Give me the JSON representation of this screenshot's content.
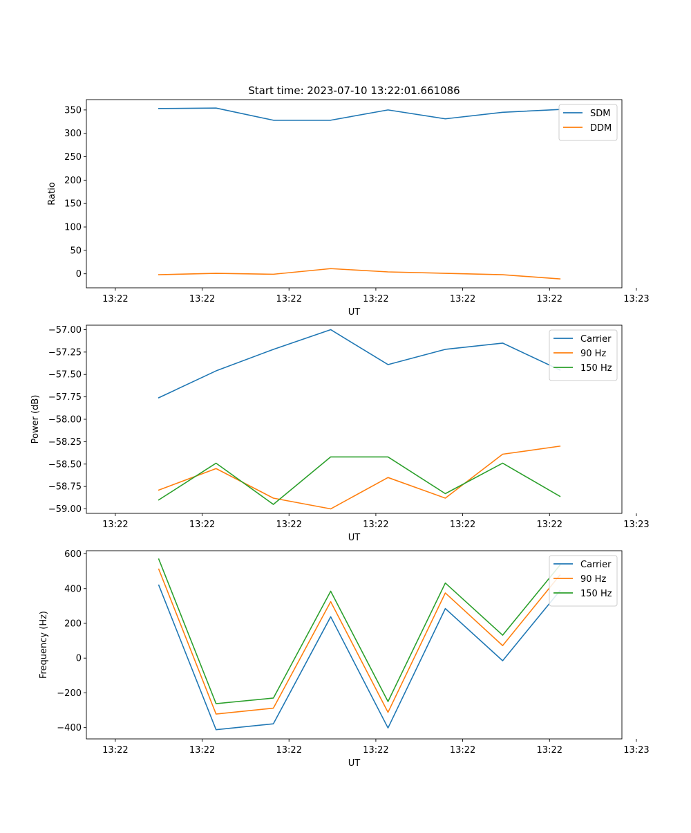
{
  "figure_title": "Start time: 2023-07-10 13:22:01.661086",
  "chart_data": [
    {
      "type": "line",
      "title": "Start time: 2023-07-10 13:22:01.661086",
      "xlabel": "UT",
      "ylabel": "Ratio",
      "xlim": [
        -0.5,
        8.75
      ],
      "ylim": [
        -30,
        372
      ],
      "xticks": [
        0,
        1.5,
        3,
        4.5,
        6,
        7.5,
        9
      ],
      "xtick_labels": [
        "13:22",
        "13:22",
        "13:22",
        "13:22",
        "13:22",
        "13:22",
        "13:23"
      ],
      "yticks": [
        0,
        50,
        100,
        150,
        200,
        250,
        300,
        350
      ],
      "ytick_labels": [
        "0",
        "50",
        "100",
        "150",
        "200",
        "250",
        "300",
        "350"
      ],
      "x": [
        0.75,
        1.74,
        2.73,
        3.72,
        4.71,
        5.7,
        6.69,
        7.68
      ],
      "legend_position": "top-right",
      "series": [
        {
          "name": "SDM",
          "color": "#1f77b4",
          "values": [
            353,
            354,
            328,
            328,
            350,
            331,
            345,
            351
          ]
        },
        {
          "name": "DDM",
          "color": "#ff7f0e",
          "values": [
            -2,
            1,
            -1,
            11,
            4,
            1,
            -2,
            -11
          ]
        }
      ]
    },
    {
      "type": "line",
      "title": "",
      "xlabel": "UT",
      "ylabel": "Power (dB)",
      "xlim": [
        -0.5,
        8.75
      ],
      "ylim": [
        -59.05,
        -56.95
      ],
      "xticks": [
        0,
        1.5,
        3,
        4.5,
        6,
        7.5,
        9
      ],
      "xtick_labels": [
        "13:22",
        "13:22",
        "13:22",
        "13:22",
        "13:22",
        "13:22",
        "13:23"
      ],
      "yticks": [
        -59.0,
        -58.75,
        -58.5,
        -58.25,
        -58.0,
        -57.75,
        -57.5,
        -57.25,
        -57.0
      ],
      "ytick_labels": [
        "−59.00",
        "−58.75",
        "−58.50",
        "−58.25",
        "−58.00",
        "−57.75",
        "−57.50",
        "−57.25",
        "−57.00"
      ],
      "x": [
        0.75,
        1.74,
        2.73,
        3.72,
        4.71,
        5.7,
        6.69,
        7.68
      ],
      "legend_position": "top-right",
      "series": [
        {
          "name": "Carrier",
          "color": "#1f77b4",
          "values": [
            -57.76,
            -57.46,
            -57.22,
            -57.0,
            -57.39,
            -57.22,
            -57.15,
            -57.45
          ]
        },
        {
          "name": "90 Hz",
          "color": "#ff7f0e",
          "values": [
            -58.79,
            -58.55,
            -58.88,
            -59.0,
            -58.65,
            -58.88,
            -58.39,
            -58.3
          ]
        },
        {
          "name": "150 Hz",
          "color": "#2ca02c",
          "values": [
            -58.9,
            -58.49,
            -58.95,
            -58.42,
            -58.42,
            -58.83,
            -58.49,
            -58.86
          ]
        }
      ]
    },
    {
      "type": "line",
      "title": "",
      "xlabel": "UT",
      "ylabel": "Frequency (Hz)",
      "xlim": [
        -0.5,
        8.75
      ],
      "ylim": [
        -465,
        618
      ],
      "xticks": [
        0,
        1.5,
        3,
        4.5,
        6,
        7.5,
        9
      ],
      "xtick_labels": [
        "13:22",
        "13:22",
        "13:22",
        "13:22",
        "13:22",
        "13:22",
        "13:23"
      ],
      "yticks": [
        -400,
        -200,
        0,
        200,
        400,
        600
      ],
      "ytick_labels": [
        "−400",
        "−200",
        "0",
        "200",
        "400",
        "600"
      ],
      "x": [
        0.75,
        1.74,
        2.73,
        3.72,
        4.71,
        5.7,
        6.69,
        7.68
      ],
      "legend_position": "top-right",
      "series": [
        {
          "name": "Carrier",
          "color": "#1f77b4",
          "values": [
            420,
            -412,
            -378,
            238,
            -402,
            285,
            -15,
            388
          ]
        },
        {
          "name": "90 Hz",
          "color": "#ff7f0e",
          "values": [
            512,
            -322,
            -288,
            325,
            -312,
            375,
            72,
            478
          ]
        },
        {
          "name": "150 Hz",
          "color": "#2ca02c",
          "values": [
            570,
            -262,
            -230,
            385,
            -250,
            432,
            132,
            535
          ]
        }
      ]
    }
  ]
}
